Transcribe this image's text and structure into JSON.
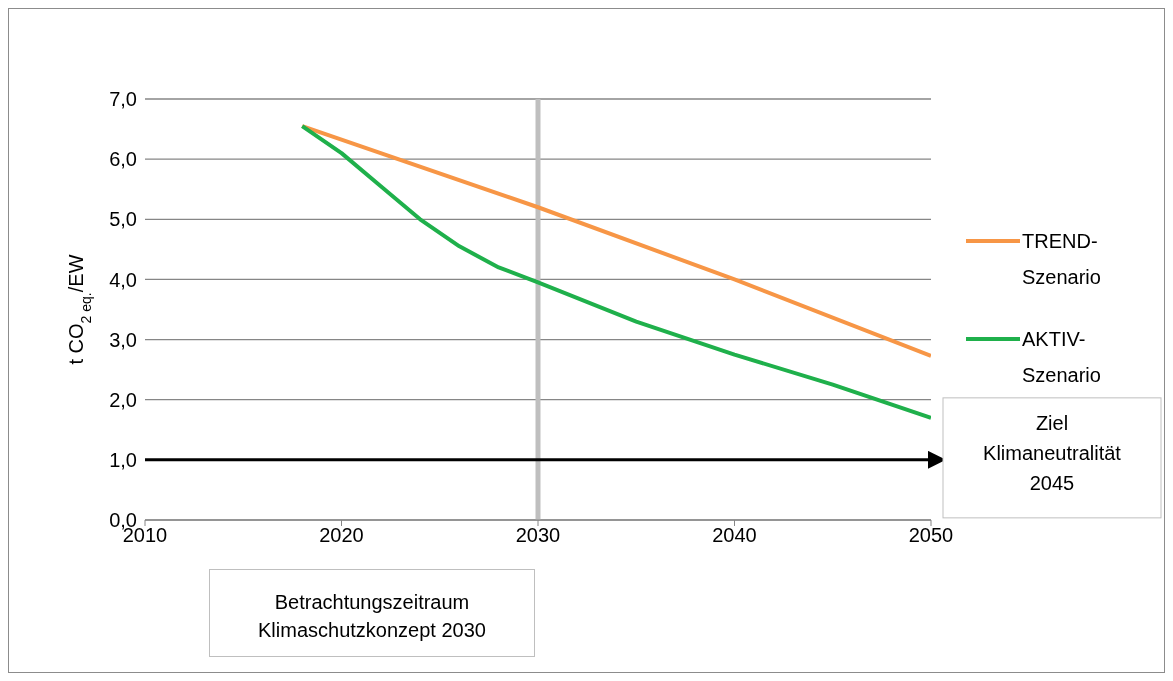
{
  "chart_data": {
    "type": "line",
    "ylabel": "t CO$_{2 eq.}$/EW",
    "xlim": [
      2010,
      2050
    ],
    "xticks": [
      2010,
      2020,
      2030,
      2040,
      2050
    ],
    "ylim": [
      0,
      7
    ],
    "yticks": [
      {
        "value": 0,
        "label": "0,0"
      },
      {
        "value": 1,
        "label": "1,0"
      },
      {
        "value": 2,
        "label": "2,0"
      },
      {
        "value": 3,
        "label": "3,0"
      },
      {
        "value": 4,
        "label": "4,0"
      },
      {
        "value": 5,
        "label": "5,0"
      },
      {
        "value": 6,
        "label": "6,0"
      },
      {
        "value": 7,
        "label": "7,0"
      }
    ],
    "series": [
      {
        "name": "TREND-Szenario",
        "color": "#f79646",
        "x": [
          2018,
          2030,
          2040,
          2050
        ],
        "values": [
          6.55,
          5.2,
          4.0,
          2.73
        ]
      },
      {
        "name": "AKTIV-Szenario",
        "color": "#1fb04b",
        "x": [
          2018,
          2020,
          2022,
          2024,
          2026,
          2028,
          2030,
          2035,
          2040,
          2045,
          2050
        ],
        "values": [
          6.55,
          6.1,
          5.55,
          5.0,
          4.55,
          4.2,
          3.95,
          3.3,
          2.75,
          2.25,
          1.7
        ]
      }
    ],
    "ref_lines": [
      {
        "axis": "x",
        "value": 2030,
        "color": "#bfbfbf"
      },
      {
        "axis": "y",
        "value": 1,
        "label": "Ziel Klimaneutralität 2045",
        "color": "#000000"
      }
    ],
    "annotations": [
      "Betrachtungszeitraum Klimaschutzkonzept 2030"
    ],
    "grid": "y",
    "legend": "right",
    "marker": "none",
    "line_style": "solid"
  }
}
